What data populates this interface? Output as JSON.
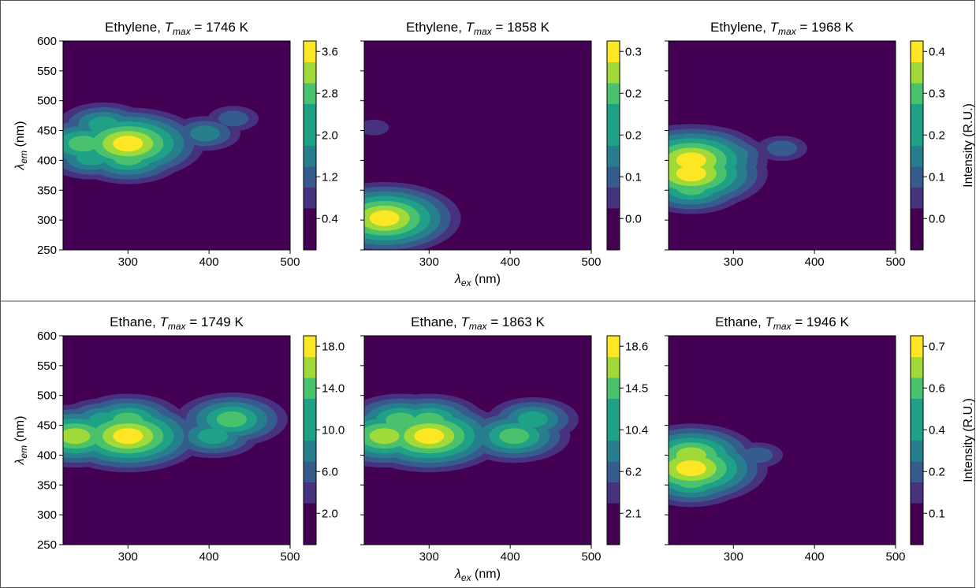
{
  "chart_data": [
    {
      "type": "heatmap",
      "title": {
        "pre": "Ethylene, ",
        "sym": "T",
        "sub": "max",
        "post": " = 1746 K"
      },
      "xlabel": "",
      "ylabel_sym": "λ",
      "ylabel_sub": "em",
      "ylabel_unit": " (nm)",
      "xlim": [
        220,
        500
      ],
      "ylim": [
        250,
        600
      ],
      "xticks": [
        300,
        400,
        500
      ],
      "yticks": [
        250,
        300,
        350,
        400,
        450,
        500,
        550,
        600
      ],
      "colorbar": {
        "ticks": [
          "0.4",
          "1.2",
          "2.0",
          "2.8",
          "3.6"
        ],
        "ylabel": ""
      },
      "peaks": [
        {
          "ex": 300,
          "em": 428,
          "value": 3.6
        },
        {
          "ex": 245,
          "em": 428,
          "value": 2.8
        },
        {
          "ex": 270,
          "em": 460,
          "value": 2.2
        },
        {
          "ex": 300,
          "em": 405,
          "value": 2.4
        },
        {
          "ex": 255,
          "em": 405,
          "value": 2.2
        },
        {
          "ex": 395,
          "em": 445,
          "value": 1.3
        },
        {
          "ex": 430,
          "em": 470,
          "value": 1.1
        }
      ]
    },
    {
      "type": "heatmap",
      "title": {
        "pre": "Ethylene, ",
        "sym": "T",
        "sub": "max",
        "post": " = 1858 K"
      },
      "xlabel_sym": "λ",
      "xlabel_sub": "ex",
      "xlabel_unit": " (nm)",
      "ylabel": "",
      "xlim": [
        220,
        500
      ],
      "ylim": [
        250,
        600
      ],
      "xticks": [
        300,
        400,
        500
      ],
      "yticks": [
        250,
        300,
        350,
        400,
        450,
        500,
        550,
        600
      ],
      "colorbar": {
        "ticks": [
          "0.0",
          "0.1",
          "0.2",
          "0.2",
          "0.3"
        ],
        "ylabel": ""
      },
      "peaks": [
        {
          "ex": 245,
          "em": 303,
          "value": 0.3
        },
        {
          "ex": 240,
          "em": 340,
          "value": 0.1
        },
        {
          "ex": 232,
          "em": 455,
          "value": 0.05
        }
      ]
    },
    {
      "type": "heatmap",
      "title": {
        "pre": "Ethylene, ",
        "sym": "T",
        "sub": "max",
        "post": " = 1968 K"
      },
      "xlabel": "",
      "ylabel": "",
      "xlim": [
        220,
        500
      ],
      "ylim": [
        250,
        600
      ],
      "xticks": [
        300,
        400,
        500
      ],
      "yticks": [
        250,
        300,
        350,
        400,
        450,
        500,
        550,
        600
      ],
      "colorbar": {
        "ticks": [
          "0.0",
          "0.1",
          "0.2",
          "0.3",
          "0.4"
        ],
        "ylabel": "Intensity (R.U.)"
      },
      "peaks": [
        {
          "ex": 248,
          "em": 400,
          "value": 0.4
        },
        {
          "ex": 248,
          "em": 378,
          "value": 0.38
        },
        {
          "ex": 248,
          "em": 355,
          "value": 0.3
        },
        {
          "ex": 270,
          "em": 420,
          "value": 0.25
        },
        {
          "ex": 300,
          "em": 410,
          "value": 0.18
        },
        {
          "ex": 360,
          "em": 420,
          "value": 0.1
        }
      ]
    },
    {
      "type": "heatmap",
      "title": {
        "pre": "Ethane, ",
        "sym": "T",
        "sub": "max",
        "post": " = 1749 K"
      },
      "xlabel": "",
      "ylabel_sym": "λ",
      "ylabel_sub": "em",
      "ylabel_unit": " (nm)",
      "xlim": [
        220,
        500
      ],
      "ylim": [
        250,
        600
      ],
      "xticks": [
        300,
        400,
        500
      ],
      "yticks": [
        250,
        300,
        350,
        400,
        450,
        500,
        550,
        600
      ],
      "colorbar": {
        "ticks": [
          "2.0",
          "6.0",
          "10.0",
          "14.0",
          "18.0"
        ],
        "ylabel": ""
      },
      "peaks": [
        {
          "ex": 300,
          "em": 432,
          "value": 18
        },
        {
          "ex": 235,
          "em": 432,
          "value": 16
        },
        {
          "ex": 300,
          "em": 458,
          "value": 14
        },
        {
          "ex": 270,
          "em": 458,
          "value": 11
        },
        {
          "ex": 428,
          "em": 460,
          "value": 12
        },
        {
          "ex": 405,
          "em": 432,
          "value": 11
        }
      ]
    },
    {
      "type": "heatmap",
      "title": {
        "pre": "Ethane, ",
        "sym": "T",
        "sub": "max",
        "post": " = 1863 K"
      },
      "xlabel_sym": "λ",
      "xlabel_sub": "ex",
      "xlabel_unit": " (nm)",
      "ylabel": "",
      "xlim": [
        220,
        500
      ],
      "ylim": [
        250,
        600
      ],
      "xticks": [
        300,
        400,
        500
      ],
      "yticks": [
        250,
        300,
        350,
        400,
        450,
        500,
        550,
        600
      ],
      "colorbar": {
        "ticks": [
          "2.1",
          "6.2",
          "10.4",
          "14.5",
          "18.6"
        ],
        "ylabel": ""
      },
      "peaks": [
        {
          "ex": 300,
          "em": 432,
          "value": 18.6
        },
        {
          "ex": 245,
          "em": 432,
          "value": 17
        },
        {
          "ex": 300,
          "em": 458,
          "value": 14
        },
        {
          "ex": 265,
          "em": 458,
          "value": 12
        },
        {
          "ex": 428,
          "em": 460,
          "value": 10
        },
        {
          "ex": 405,
          "em": 432,
          "value": 12
        }
      ]
    },
    {
      "type": "heatmap",
      "title": {
        "pre": "Ethane, ",
        "sym": "T",
        "sub": "max",
        "post": " = 1946 K"
      },
      "xlabel": "",
      "ylabel": "",
      "xlim": [
        220,
        500
      ],
      "ylim": [
        250,
        600
      ],
      "xticks": [
        300,
        400,
        500
      ],
      "yticks": [
        250,
        300,
        350,
        400,
        450,
        500,
        550,
        600
      ],
      "colorbar": {
        "ticks": [
          "0.1",
          "0.2",
          "0.4",
          "0.6",
          "0.7"
        ],
        "ylabel": "Intensity (R.U.)"
      },
      "peaks": [
        {
          "ex": 248,
          "em": 378,
          "value": 0.7
        },
        {
          "ex": 248,
          "em": 400,
          "value": 0.6
        },
        {
          "ex": 248,
          "em": 358,
          "value": 0.5
        },
        {
          "ex": 272,
          "em": 410,
          "value": 0.3
        },
        {
          "ex": 330,
          "em": 400,
          "value": 0.15
        }
      ]
    }
  ],
  "colors": {
    "background": "#440154",
    "viridis": [
      "#440154",
      "#46327e",
      "#365c8d",
      "#277f8e",
      "#1fa187",
      "#4ac16d",
      "#a0da39",
      "#fde725"
    ]
  }
}
